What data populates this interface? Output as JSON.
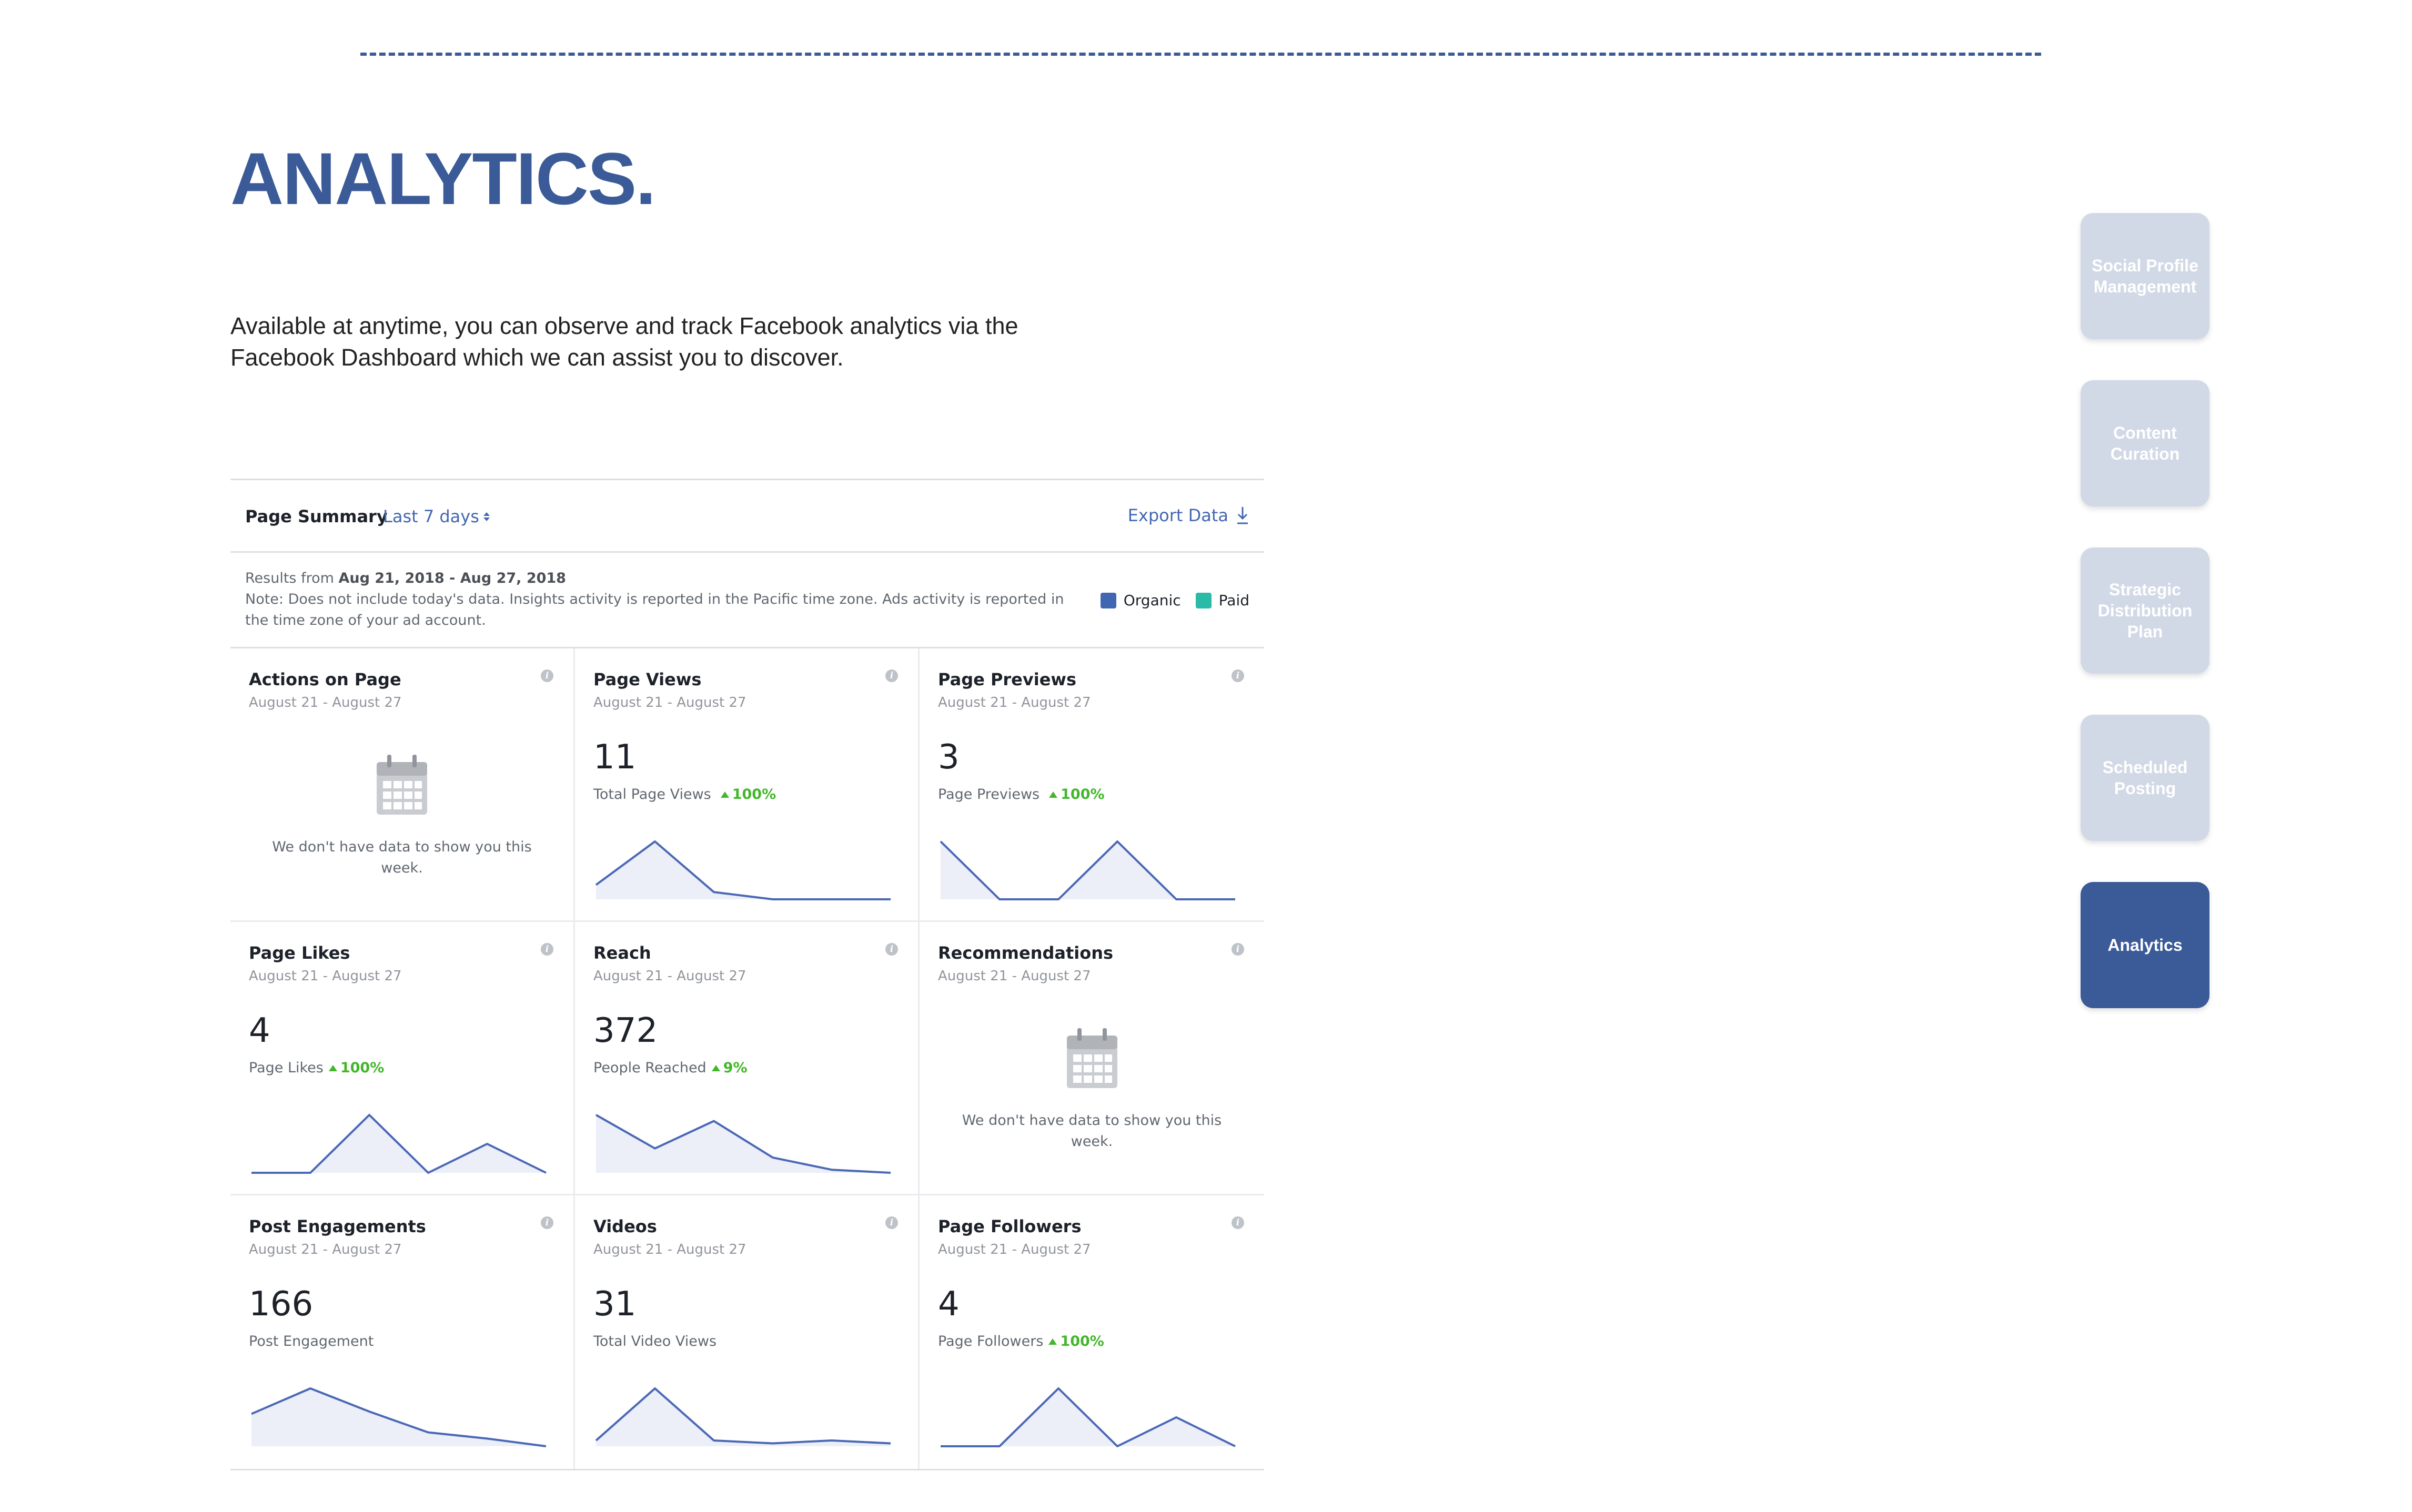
{
  "page": {
    "title": "ANALYTICS.",
    "intro": "Available at anytime, you can observe and track Facebook analytics via the Facebook Dashboard which we can assist you to discover."
  },
  "side_nav": [
    {
      "label": "Social Profile Management",
      "active": false
    },
    {
      "label": "Content Curation",
      "active": false
    },
    {
      "label": "Strategic Distribution Plan",
      "active": false
    },
    {
      "label": "Scheduled Posting",
      "active": false
    },
    {
      "label": "Analytics",
      "active": true
    }
  ],
  "colors": {
    "brand": "#3b5a98",
    "nav_inactive": "#d2d9e6",
    "fb_blue": "#4267b2",
    "line": "#4a68b5",
    "area": "#eceef8",
    "increase": "#42b72a",
    "organic": "#4267b2",
    "paid": "#2abba7"
  },
  "dashboard": {
    "summary_title": "Page Summary",
    "range": "Last 7 days",
    "export_label": "Export Data",
    "results_prefix": "Results from",
    "results_range": "Aug 21, 2018 - Aug 27, 2018",
    "note": "Note: Does not include today's data. Insights activity is reported in the Pacific time zone. Ads activity is reported in the time zone of your ad account.",
    "legend": [
      {
        "label": "Organic",
        "color": "#4267b2"
      },
      {
        "label": "Paid",
        "color": "#2abba7"
      }
    ],
    "cards": [
      {
        "title": "Actions on Page",
        "date": "August 21 - August 27",
        "empty": true,
        "empty_text": "We don't have data to show you this week."
      },
      {
        "title": "Page Views",
        "date": "August 21 - August 27",
        "value": "11",
        "metric": "Total Page Views",
        "delta": "100%",
        "trend": [
          2,
          8,
          1,
          0,
          0,
          0
        ]
      },
      {
        "title": "Page Previews",
        "date": "August 21 - August 27",
        "value": "3",
        "metric": "Page Previews",
        "delta": "100%",
        "trend": [
          1,
          0,
          0,
          1,
          0,
          0
        ]
      },
      {
        "title": "Page Likes",
        "date": "August 21 - August 27",
        "value": "4",
        "metric": "Page Likes",
        "delta": "100%",
        "trend": [
          0,
          0,
          2,
          0,
          1,
          0
        ]
      },
      {
        "title": "Reach",
        "date": "August 21 - August 27",
        "value": "372",
        "metric": "People Reached",
        "delta": "9%",
        "trend": [
          95,
          40,
          85,
          25,
          5,
          0
        ]
      },
      {
        "title": "Recommendations",
        "date": "August 21 - August 27",
        "empty": true,
        "empty_text": "We don't have data to show you this week."
      },
      {
        "title": "Post Engagements",
        "date": "August 21 - August 27",
        "value": "166",
        "metric": "Post Engagement",
        "delta": "",
        "trend": [
          42,
          75,
          45,
          18,
          10,
          0
        ]
      },
      {
        "title": "Videos",
        "date": "August 21 - August 27",
        "value": "31",
        "metric": "Total Video Views",
        "delta": "",
        "trend": [
          1,
          10,
          1,
          0.5,
          1,
          0.5
        ]
      },
      {
        "title": "Page Followers",
        "date": "August 21 - August 27",
        "value": "4",
        "metric": "Page Followers",
        "delta": "100%",
        "trend": [
          0,
          0,
          2,
          0,
          1,
          0
        ]
      }
    ]
  }
}
